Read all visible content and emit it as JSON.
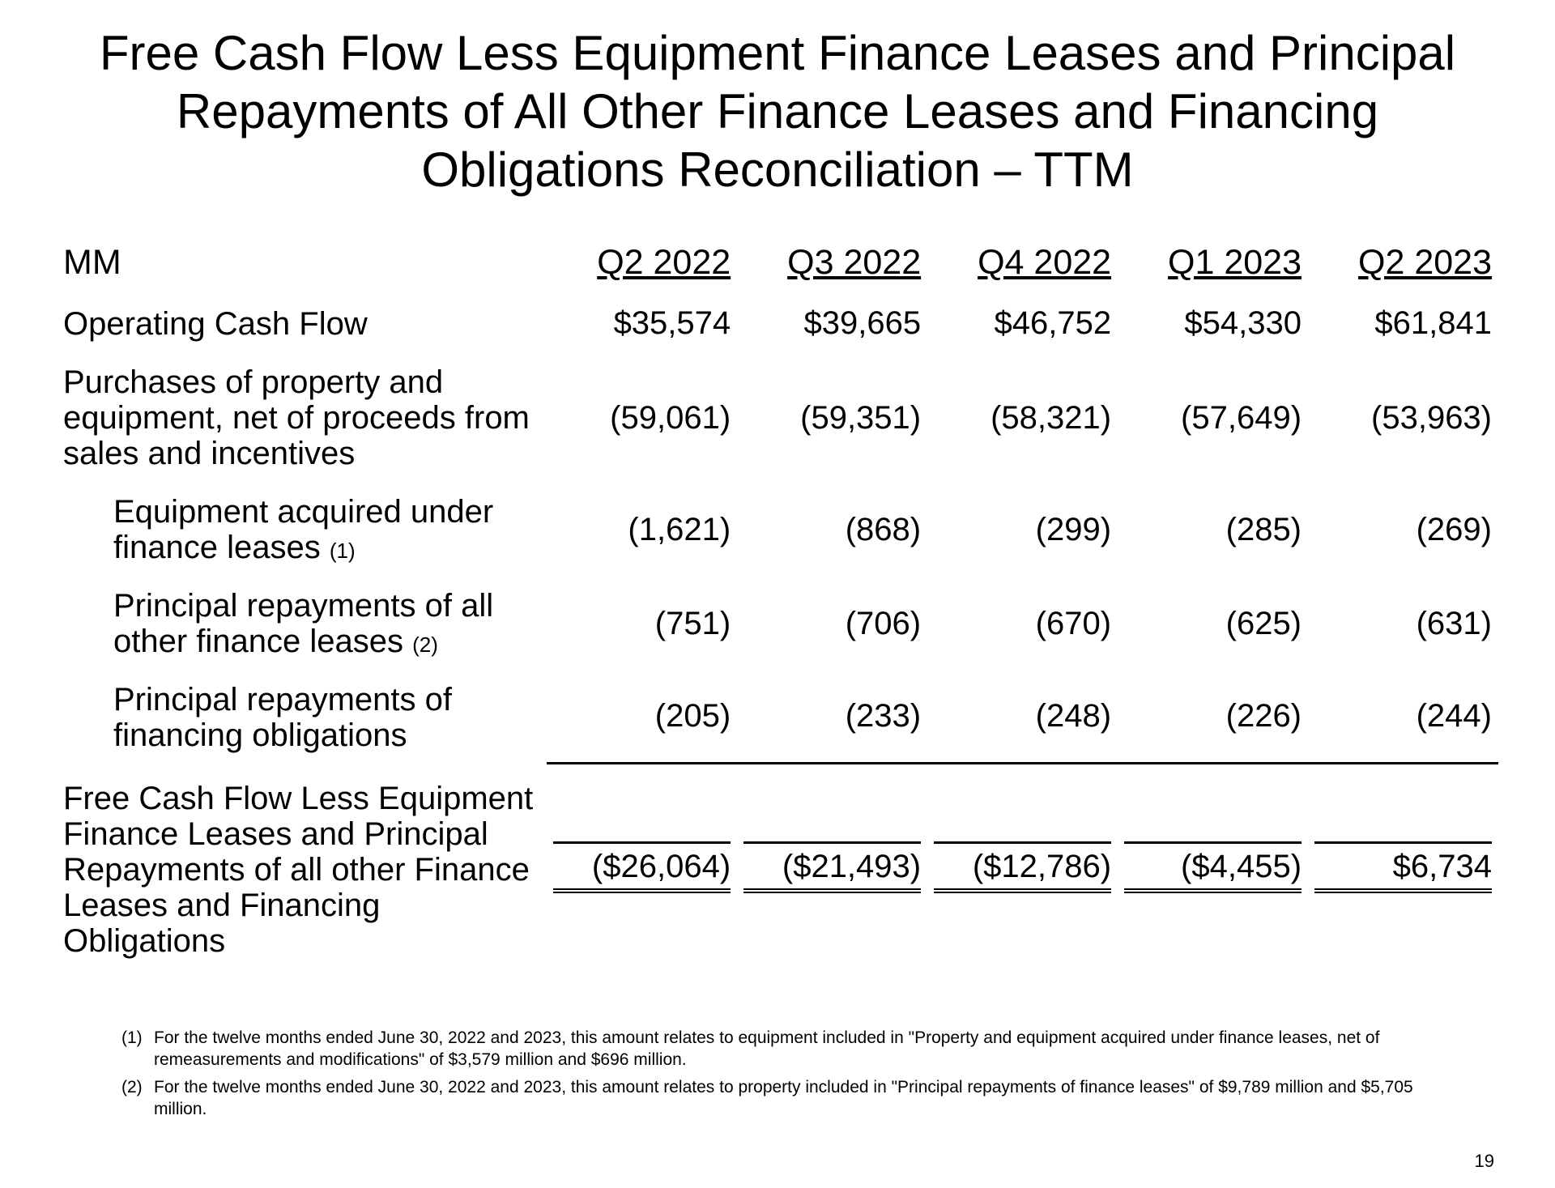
{
  "title": "Free Cash Flow Less Equipment Finance Leases and Principal Repayments of All Other Finance Leases and Financing Obligations Reconciliation – TTM",
  "unit_label": "MM",
  "columns": [
    "Q2 2022",
    "Q3 2022",
    "Q4 2022",
    "Q1 2023",
    "Q2 2023"
  ],
  "rows": {
    "ocf": {
      "label": "Operating Cash Flow",
      "values": [
        "$35,574",
        "$39,665",
        "$46,752",
        "$54,330",
        "$61,841"
      ]
    },
    "purchases": {
      "label": "Purchases of property and equipment, net of proceeds from sales and incentives",
      "values": [
        "(59,061)",
        "(59,351)",
        "(58,321)",
        "(57,649)",
        "(53,963)"
      ]
    },
    "equip_acq": {
      "label": "Equipment acquired under finance leases ",
      "ref": "(1)",
      "values": [
        "(1,621)",
        "(868)",
        "(299)",
        "(285)",
        "(269)"
      ]
    },
    "principal_other": {
      "label": "Principal repayments of all other finance leases ",
      "ref": "(2)",
      "values": [
        "(751)",
        "(706)",
        "(670)",
        "(625)",
        "(631)"
      ]
    },
    "principal_fin": {
      "label": "Principal repayments of financing obligations",
      "values": [
        "(205)",
        "(233)",
        "(248)",
        "(226)",
        "(244)"
      ]
    },
    "total": {
      "label": "Free Cash Flow Less Equipment Finance Leases and Principal Repayments of all other Finance Leases and Financing Obligations",
      "values": [
        "($26,064)",
        "($21,493)",
        "($12,786)",
        "($4,455)",
        "$6,734"
      ]
    }
  },
  "footnotes": {
    "f1_num": "(1)",
    "f1": "For the twelve months ended June 30, 2022 and 2023, this amount relates to equipment included in \"Property and equipment acquired under finance leases, net of remeasurements and modifications\" of $3,579 million and $696 million.",
    "f2_num": "(2)",
    "f2": "For the twelve months ended June 30, 2022 and 2023, this amount relates to property included in \"Principal repayments of finance leases\" of $9,789 million and $5,705 million."
  },
  "page_number": "19"
}
